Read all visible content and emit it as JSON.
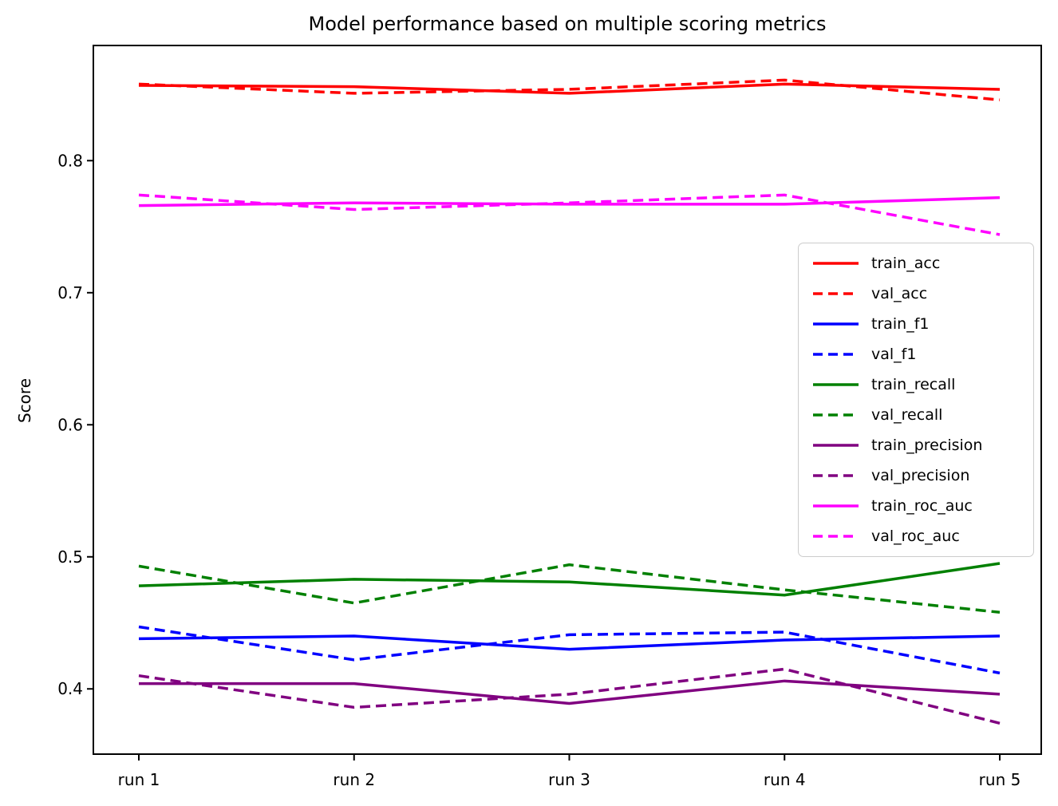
{
  "chart_data": {
    "type": "line",
    "title": "Model performance based on multiple scoring metrics",
    "xlabel": "",
    "ylabel": "Score",
    "categories": [
      "run 1",
      "run 2",
      "run 3",
      "run 4",
      "run 5"
    ],
    "ytick_labels": [
      "0.4",
      "0.5",
      "0.6",
      "0.7",
      "0.8"
    ],
    "ytick_values": [
      0.4,
      0.5,
      0.6,
      0.7,
      0.8
    ],
    "ylim": [
      0.3506,
      0.8872
    ],
    "grid": false,
    "legend_position": "center-right-inside",
    "colors": {
      "acc": "#ff0000",
      "f1": "#0000ff",
      "recall": "#008000",
      "precision": "#800080",
      "roc_auc": "#ff00ff",
      "axis": "#000000",
      "legend_border": "#cccccc"
    },
    "series": [
      {
        "name": "train_acc",
        "color": "#ff0000",
        "style": "solid",
        "values": [
          0.857,
          0.856,
          0.851,
          0.858,
          0.854
        ]
      },
      {
        "name": "val_acc",
        "color": "#ff0000",
        "style": "dashed",
        "values": [
          0.858,
          0.851,
          0.854,
          0.861,
          0.846
        ]
      },
      {
        "name": "train_f1",
        "color": "#0000ff",
        "style": "solid",
        "values": [
          0.438,
          0.44,
          0.43,
          0.437,
          0.44
        ]
      },
      {
        "name": "val_f1",
        "color": "#0000ff",
        "style": "dashed",
        "values": [
          0.447,
          0.422,
          0.441,
          0.443,
          0.412
        ]
      },
      {
        "name": "train_recall",
        "color": "#008000",
        "style": "solid",
        "values": [
          0.478,
          0.483,
          0.481,
          0.471,
          0.495
        ]
      },
      {
        "name": "val_recall",
        "color": "#008000",
        "style": "dashed",
        "values": [
          0.493,
          0.465,
          0.494,
          0.475,
          0.458
        ]
      },
      {
        "name": "train_precision",
        "color": "#800080",
        "style": "solid",
        "values": [
          0.404,
          0.404,
          0.389,
          0.406,
          0.396
        ]
      },
      {
        "name": "val_precision",
        "color": "#800080",
        "style": "dashed",
        "values": [
          0.41,
          0.386,
          0.396,
          0.415,
          0.374
        ]
      },
      {
        "name": "train_roc_auc",
        "color": "#ff00ff",
        "style": "solid",
        "values": [
          0.766,
          0.768,
          0.767,
          0.767,
          0.772
        ]
      },
      {
        "name": "val_roc_auc",
        "color": "#ff00ff",
        "style": "dashed",
        "values": [
          0.774,
          0.763,
          0.768,
          0.774,
          0.744
        ]
      }
    ]
  }
}
